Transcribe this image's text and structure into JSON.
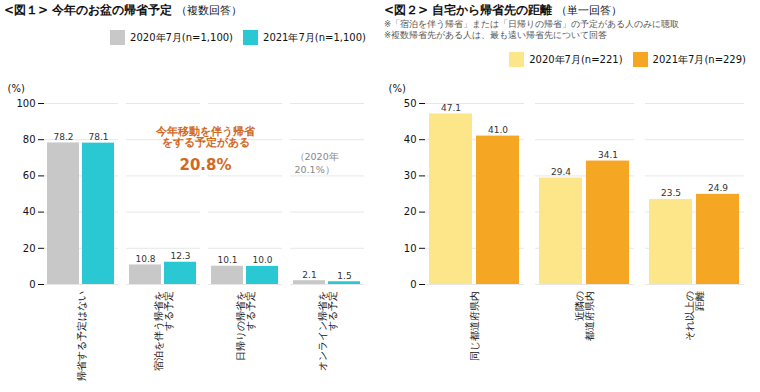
{
  "chart_data": [
    {
      "type": "bar",
      "title": "<図１> 今年のお盆の帰省予定",
      "subtitle": [
        "（複数回答）"
      ],
      "categories": [
        "帰省する予定はない",
        "宿泊を伴う帰省を\nする予定",
        "日帰りの帰省を\nする予定",
        "オンライン帰省を\nする予定"
      ],
      "series": [
        {
          "name": "2020年7月(n=1,100)",
          "color": "#c8c8c8",
          "values": [
            78.2,
            10.8,
            10.1,
            2.1
          ]
        },
        {
          "name": "2021年7月(n=1,100)",
          "color": "#29c8d2",
          "values": [
            78.1,
            12.3,
            10.0,
            1.5
          ]
        }
      ],
      "ylabel": "(%)",
      "ylim": [
        0,
        100
      ],
      "yticks": [
        0,
        20,
        40,
        60,
        80,
        100
      ],
      "grid": true,
      "legend": "upper right",
      "data_labels": true,
      "annotations": [
        "今年移動を伴う帰省\nをする予定がある",
        "20.8%",
        "（2020年\n20.1%）"
      ]
    },
    {
      "type": "bar",
      "title": "<図２> 自宅から帰省先の距離",
      "subtitle": [
        "（単一回答）",
        "※「宿泊を伴う帰省」または「日帰りの帰省」の予定がある人のみに聴取",
        "※複数帰省先がある人は、最も遠い帰省先について回答"
      ],
      "categories": [
        "同じ都道府県内",
        "近隣の\n都道府県内",
        "それ以上の\n距離"
      ],
      "series": [
        {
          "name": "2020年7月(n=221)",
          "color": "#fde68a",
          "values": [
            47.1,
            29.4,
            23.5
          ]
        },
        {
          "name": "2021年7月(n=229)",
          "color": "#f5a623",
          "values": [
            41.0,
            34.1,
            24.9
          ]
        }
      ],
      "ylabel": "(%)",
      "ylim": [
        0,
        50
      ],
      "yticks": [
        0,
        10,
        20,
        30,
        40,
        50
      ],
      "grid": true,
      "legend": "upper right",
      "data_labels": true
    }
  ]
}
